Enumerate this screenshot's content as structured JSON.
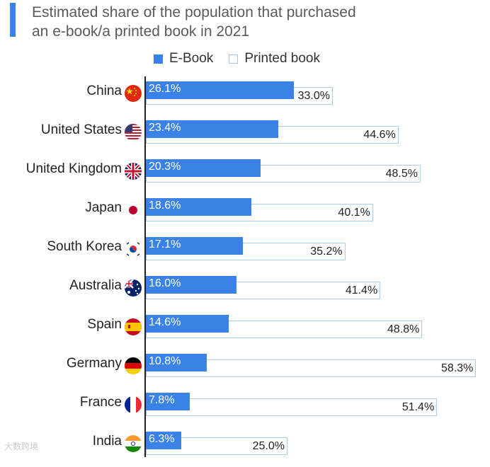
{
  "chart_data": {
    "type": "bar",
    "orientation": "horizontal",
    "title": "Estimated share of the population that purchased an e-book/a printed book in 2021",
    "title_lines": [
      "Estimated share of the population that purchased",
      "an e-book/a printed book in 2021"
    ],
    "categories": [
      "China",
      "United States",
      "United Kingdom",
      "Japan",
      "South Korea",
      "Australia",
      "Spain",
      "Germany",
      "France",
      "India"
    ],
    "series": [
      {
        "name": "E-Book",
        "color": "#3b82e6",
        "values": [
          26.1,
          23.4,
          20.3,
          18.6,
          17.1,
          16.0,
          14.6,
          10.8,
          7.8,
          6.3
        ]
      },
      {
        "name": "Printed book",
        "color": "#ffffff",
        "values": [
          33.0,
          44.6,
          48.5,
          40.1,
          35.2,
          41.4,
          48.8,
          58.3,
          51.4,
          25.0
        ]
      }
    ],
    "data_labels": {
      "ebook": [
        "26.1%",
        "23.4%",
        "20.3%",
        "18.6%",
        "17.1%",
        "16.0%",
        "14.6%",
        "10.8%",
        "7.8%",
        "6.3%"
      ],
      "printed": [
        "33.0%",
        "44.6%",
        "48.5%",
        "40.1%",
        "35.2%",
        "41.4%",
        "48.8%",
        "58.3%",
        "51.4%",
        "25.0%"
      ]
    },
    "xlim": [
      0,
      60
    ],
    "legend": "top-center",
    "grid": false
  },
  "flags": [
    "china-flag-icon",
    "usa-flag-icon",
    "uk-flag-icon",
    "japan-flag-icon",
    "south-korea-flag-icon",
    "australia-flag-icon",
    "spain-flag-icon",
    "germany-flag-icon",
    "france-flag-icon",
    "india-flag-icon"
  ],
  "watermark": "大数跨境"
}
